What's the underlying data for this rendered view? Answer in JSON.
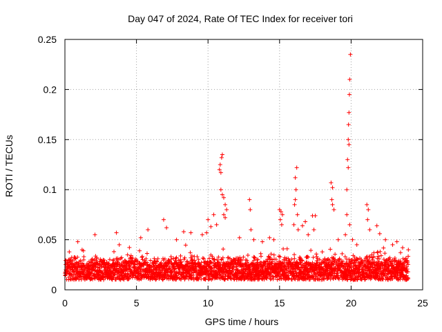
{
  "chart_data": {
    "type": "scatter",
    "title": "Day 047 of 2024, Rate Of TEC Index for receiver tori",
    "xlabel": "GPS time / hours",
    "ylabel": "ROTI / TECUs",
    "xlim": [
      0,
      25
    ],
    "ylim": [
      0,
      0.25
    ],
    "xticks": [
      "0",
      "5",
      "10",
      "15",
      "20",
      "25"
    ],
    "yticks": [
      "0",
      "0.05",
      "0.1",
      "0.15",
      "0.2",
      "0.25"
    ],
    "grid": true,
    "marker": "plus",
    "series": [
      {
        "name": "ROTI",
        "color": "#ff0000",
        "baseline_range": [
          0.01,
          0.035
        ],
        "points": [
          [
            0.3,
            0.03
          ],
          [
            0.9,
            0.048
          ],
          [
            1.2,
            0.04
          ],
          [
            2.1,
            0.055
          ],
          [
            3.6,
            0.057
          ],
          [
            3.8,
            0.045
          ],
          [
            5.3,
            0.052
          ],
          [
            5.8,
            0.06
          ],
          [
            6.9,
            0.07
          ],
          [
            7.1,
            0.062
          ],
          [
            7.8,
            0.05
          ],
          [
            8.3,
            0.058
          ],
          [
            8.8,
            0.057
          ],
          [
            9.6,
            0.055
          ],
          [
            9.9,
            0.057
          ],
          [
            10.0,
            0.07
          ],
          [
            10.2,
            0.063
          ],
          [
            10.4,
            0.075
          ],
          [
            10.6,
            0.065
          ],
          [
            10.8,
            0.12
          ],
          [
            10.85,
            0.125
          ],
          [
            10.9,
            0.117
          ],
          [
            10.95,
            0.132
          ],
          [
            11.0,
            0.135
          ],
          [
            10.9,
            0.1
          ],
          [
            11.0,
            0.095
          ],
          [
            11.1,
            0.092
          ],
          [
            11.2,
            0.085
          ],
          [
            11.1,
            0.075
          ],
          [
            11.3,
            0.08
          ],
          [
            11.2,
            0.072
          ],
          [
            12.2,
            0.052
          ],
          [
            12.9,
            0.09
          ],
          [
            12.95,
            0.08
          ],
          [
            13.0,
            0.06
          ],
          [
            13.2,
            0.05
          ],
          [
            13.8,
            0.048
          ],
          [
            14.3,
            0.052
          ],
          [
            14.6,
            0.05
          ],
          [
            15.0,
            0.08
          ],
          [
            15.1,
            0.078
          ],
          [
            15.05,
            0.07
          ],
          [
            15.15,
            0.065
          ],
          [
            15.2,
            0.075
          ],
          [
            16.0,
            0.065
          ],
          [
            16.05,
            0.085
          ],
          [
            16.1,
            0.09
          ],
          [
            16.15,
            0.1
          ],
          [
            16.2,
            0.122
          ],
          [
            16.1,
            0.112
          ],
          [
            16.25,
            0.075
          ],
          [
            16.3,
            0.06
          ],
          [
            16.6,
            0.064
          ],
          [
            16.8,
            0.068
          ],
          [
            17.0,
            0.055
          ],
          [
            17.3,
            0.074
          ],
          [
            17.5,
            0.074
          ],
          [
            17.4,
            0.06
          ],
          [
            18.6,
            0.107
          ],
          [
            18.7,
            0.102
          ],
          [
            18.65,
            0.09
          ],
          [
            18.7,
            0.085
          ],
          [
            18.8,
            0.08
          ],
          [
            19.1,
            0.05
          ],
          [
            19.6,
            0.055
          ],
          [
            19.7,
            0.1
          ],
          [
            19.8,
            0.122
          ],
          [
            19.75,
            0.13
          ],
          [
            19.85,
            0.145
          ],
          [
            19.8,
            0.15
          ],
          [
            19.82,
            0.165
          ],
          [
            19.85,
            0.177
          ],
          [
            19.88,
            0.195
          ],
          [
            19.9,
            0.21
          ],
          [
            19.95,
            0.235
          ],
          [
            19.7,
            0.075
          ],
          [
            19.9,
            0.065
          ],
          [
            20.1,
            0.05
          ],
          [
            20.4,
            0.045
          ],
          [
            21.1,
            0.085
          ],
          [
            21.2,
            0.08
          ],
          [
            21.15,
            0.07
          ],
          [
            21.3,
            0.06
          ],
          [
            21.8,
            0.064
          ],
          [
            22.0,
            0.056
          ],
          [
            22.4,
            0.05
          ],
          [
            22.9,
            0.045
          ],
          [
            23.2,
            0.048
          ],
          [
            23.6,
            0.042
          ],
          [
            24.0,
            0.04
          ]
        ]
      }
    ]
  }
}
